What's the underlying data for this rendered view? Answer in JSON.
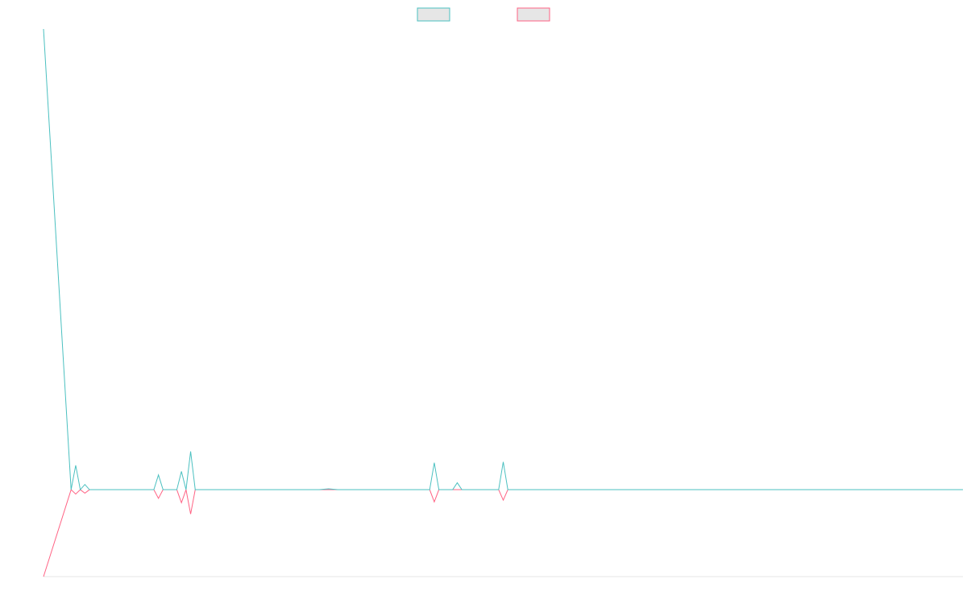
{
  "chart_data": {
    "type": "line",
    "title": "",
    "xlabel": "",
    "ylabel": "",
    "grid": false,
    "legend_placement": "top-center",
    "x": [
      0,
      30,
      35,
      40,
      45,
      50,
      120,
      125,
      130,
      145,
      150,
      155,
      160,
      165,
      170,
      300,
      310,
      320,
      420,
      425,
      430,
      445,
      450,
      455,
      495,
      500,
      505,
      1000
    ],
    "ylim": [
      -100,
      530
    ],
    "series": [
      {
        "color": "#4bc0c0",
        "fill": "#e6e6e6",
        "values": [
          530,
          0,
          28,
          0,
          6,
          0,
          0,
          17,
          0,
          0,
          21,
          0,
          44,
          0,
          0,
          0,
          1,
          0,
          0,
          31,
          0,
          0,
          8,
          0,
          0,
          32,
          0,
          0
        ]
      },
      {
        "color": "#ff6384",
        "fill": "#e6e6e6",
        "values": [
          -100,
          0,
          -5,
          0,
          -4,
          0,
          0,
          -10,
          0,
          0,
          -15,
          0,
          -28,
          0,
          0,
          0,
          0,
          0,
          0,
          -14,
          0,
          0,
          0,
          0,
          0,
          -12,
          0,
          0
        ]
      }
    ]
  }
}
